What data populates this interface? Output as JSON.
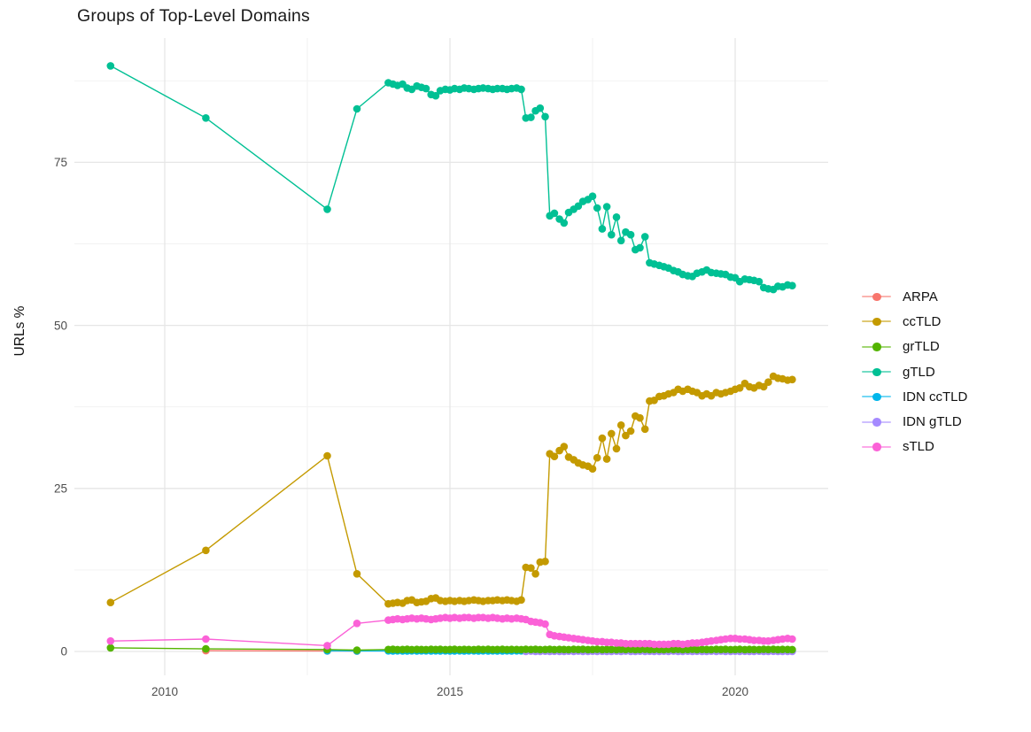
{
  "chart_data": {
    "type": "line",
    "title": "Groups of Top-Level Domains",
    "xlabel": "",
    "ylabel": "URLs %",
    "x_ticks": [
      2010,
      2015,
      2020
    ],
    "y_ticks": [
      0,
      25,
      50,
      75
    ],
    "x_minor_gridlines": [
      2012.5,
      2017.5
    ],
    "y_minor_gridlines": [
      12.5,
      37.5,
      62.5,
      87.5
    ],
    "xlim": [
      2008.45,
      2021.65
    ],
    "ylim": [
      -4,
      94.3
    ],
    "grid": "on",
    "legend_position": "right",
    "legend_order": [
      "ARPA",
      "ccTLD",
      "grTLD",
      "gTLD",
      "IDN ccTLD",
      "IDN gTLD",
      "sTLD"
    ],
    "draw_order": [
      "ARPA",
      "IDN ccTLD",
      "IDN gTLD",
      "grTLD",
      "ccTLD",
      "gTLD",
      "sTLD"
    ],
    "x": [
      2009.05,
      2010.72,
      2012.85,
      2013.37,
      2013.92,
      2014,
      2014.08,
      2014.17,
      2014.25,
      2014.33,
      2014.42,
      2014.5,
      2014.58,
      2014.67,
      2014.75,
      2014.83,
      2014.92,
      2015,
      2015.08,
      2015.17,
      2015.25,
      2015.33,
      2015.42,
      2015.5,
      2015.58,
      2015.67,
      2015.75,
      2015.83,
      2015.92,
      2016,
      2016.08,
      2016.17,
      2016.25,
      2016.33,
      2016.42,
      2016.5,
      2016.58,
      2016.67,
      2016.75,
      2016.83,
      2016.92,
      2017,
      2017.08,
      2017.17,
      2017.25,
      2017.33,
      2017.42,
      2017.5,
      2017.58,
      2017.67,
      2017.75,
      2017.83,
      2017.92,
      2018,
      2018.08,
      2018.17,
      2018.25,
      2018.33,
      2018.42,
      2018.5,
      2018.58,
      2018.67,
      2018.75,
      2018.83,
      2018.92,
      2019,
      2019.08,
      2019.17,
      2019.25,
      2019.33,
      2019.42,
      2019.5,
      2019.58,
      2019.67,
      2019.75,
      2019.83,
      2019.92,
      2020,
      2020.08,
      2020.17,
      2020.25,
      2020.33,
      2020.42,
      2020.5,
      2020.58,
      2020.67,
      2020.75,
      2020.83,
      2020.92,
      2021
    ],
    "series": [
      {
        "name": "ARPA",
        "color": "#F8766D",
        "start_index": 1,
        "y": [
          0.12,
          0.08,
          0.05
        ]
      },
      {
        "name": "ccTLD",
        "color": "#C49A00",
        "start_index": 0,
        "y": [
          7.5,
          15.5,
          30.0,
          11.9,
          7.3,
          7.4,
          7.5,
          7.4,
          7.8,
          7.9,
          7.5,
          7.6,
          7.7,
          8.1,
          8.2,
          7.8,
          7.7,
          7.8,
          7.7,
          7.8,
          7.7,
          7.8,
          7.9,
          7.8,
          7.7,
          7.8,
          7.8,
          7.9,
          7.8,
          7.9,
          7.8,
          7.7,
          7.9,
          12.9,
          12.8,
          11.9,
          13.7,
          13.8,
          30.3,
          29.9,
          30.8,
          31.4,
          29.8,
          29.4,
          28.9,
          28.6,
          28.4,
          28.0,
          29.7,
          32.7,
          29.5,
          33.4,
          31.1,
          34.7,
          33.1,
          33.8,
          36.1,
          35.8,
          34.1,
          38.4,
          38.5,
          39.1,
          39.2,
          39.5,
          39.7,
          40.2,
          39.9,
          40.2,
          39.9,
          39.7,
          39.2,
          39.5,
          39.2,
          39.7,
          39.5,
          39.7,
          39.9,
          40.2,
          40.4,
          41.1,
          40.6,
          40.4,
          40.8,
          40.6,
          41.3,
          42.2,
          41.9,
          41.8,
          41.6,
          41.7
        ]
      },
      {
        "name": "grTLD",
        "color": "#53B400",
        "start_index": 0,
        "y": [
          0.55,
          0.4,
          0.3,
          0.2,
          0.3,
          0.32,
          0.28,
          0.3,
          0.33,
          0.29,
          0.31,
          0.3,
          0.28,
          0.32,
          0.3,
          0.32,
          0.28,
          0.3,
          0.33,
          0.29,
          0.31,
          0.3,
          0.28,
          0.32,
          0.3,
          0.32,
          0.28,
          0.3,
          0.33,
          0.29,
          0.31,
          0.3,
          0.28,
          0.32,
          0.3,
          0.32,
          0.28,
          0.3,
          0.33,
          0.29,
          0.31,
          0.3,
          0.28,
          0.32,
          0.3,
          0.32,
          0.28,
          0.3,
          0.33,
          0.29,
          0.31,
          0.3,
          0.28,
          0.32,
          0.3,
          0.32,
          0.28,
          0.3,
          0.33,
          0.29,
          0.31,
          0.3,
          0.28,
          0.32,
          0.3,
          0.32,
          0.28,
          0.3,
          0.33,
          0.29,
          0.31,
          0.3,
          0.28,
          0.32,
          0.3,
          0.32,
          0.28,
          0.3,
          0.33,
          0.29,
          0.31,
          0.3,
          0.28,
          0.32,
          0.3,
          0.32,
          0.29,
          0.31,
          0.3,
          0.28
        ]
      },
      {
        "name": "gTLD",
        "color": "#00C094",
        "start_index": 0,
        "y": [
          89.8,
          81.8,
          67.8,
          83.2,
          87.2,
          87.0,
          86.8,
          87.0,
          86.4,
          86.2,
          86.7,
          86.5,
          86.3,
          85.4,
          85.2,
          86.0,
          86.2,
          86.1,
          86.3,
          86.2,
          86.4,
          86.3,
          86.2,
          86.3,
          86.4,
          86.3,
          86.2,
          86.3,
          86.3,
          86.2,
          86.3,
          86.4,
          86.2,
          81.8,
          81.9,
          82.9,
          83.3,
          82.0,
          66.8,
          67.2,
          66.3,
          65.7,
          67.3,
          67.8,
          68.3,
          69.0,
          69.3,
          69.8,
          68.0,
          64.8,
          68.2,
          63.9,
          66.6,
          63.0,
          64.3,
          63.9,
          61.6,
          61.9,
          63.6,
          59.6,
          59.4,
          59.2,
          59.0,
          58.8,
          58.4,
          58.2,
          57.8,
          57.6,
          57.5,
          58.0,
          58.2,
          58.5,
          58.1,
          58.0,
          57.9,
          57.8,
          57.4,
          57.3,
          56.7,
          57.1,
          57.0,
          56.9,
          56.7,
          55.8,
          55.6,
          55.5,
          56.0,
          55.9,
          56.2,
          56.1
        ]
      },
      {
        "name": "IDN ccTLD",
        "color": "#00B6EB",
        "start_index": 2,
        "y": [
          0.1,
          0.08,
          0.09,
          0.07,
          0.1,
          0.08,
          0.07,
          0.09,
          0.08,
          0.1,
          0.1,
          0.08,
          0.09,
          0.07,
          0.1,
          0.08,
          0.07,
          0.09,
          0.08,
          0.1,
          0.1,
          0.08,
          0.09,
          0.07,
          0.1,
          0.08,
          0.07,
          0.09,
          0.08,
          0.1,
          0.1,
          0.08,
          0.09,
          0.07,
          0.1,
          0.08,
          0.07,
          0.09,
          0.08,
          0.1,
          0.1,
          0.08,
          0.09,
          0.07,
          0.1,
          0.08,
          0.07,
          0.09,
          0.08,
          0.1,
          0.1,
          0.08,
          0.09,
          0.07,
          0.1,
          0.08,
          0.07,
          0.09,
          0.08,
          0.1,
          0.1,
          0.08,
          0.09,
          0.07,
          0.1,
          0.08,
          0.07,
          0.09,
          0.08,
          0.1,
          0.1,
          0.08,
          0.09,
          0.07,
          0.1,
          0.08,
          0.07,
          0.09,
          0.08,
          0.1,
          0.08,
          0.09,
          0.1,
          0.08,
          0.07,
          0.09,
          0.08,
          0.08
        ]
      },
      {
        "name": "IDN gTLD",
        "color": "#A58AFF",
        "start_index": 33,
        "y": [
          0,
          0.05,
          0.02,
          0,
          0.04,
          0.01,
          0.03,
          0,
          0.02,
          0.04,
          0,
          0.05,
          0.02,
          0,
          0.04,
          0.01,
          0.03,
          0,
          0.02,
          0.04,
          0,
          0.05,
          0.02,
          0,
          0.04,
          0.01,
          0.03,
          0,
          0.02,
          0.04,
          0,
          0.05,
          0.02,
          0,
          0.04,
          0.01,
          0.03,
          0,
          0.02,
          0.04,
          0,
          0.05,
          0.02,
          0,
          0.04,
          0.01,
          0.03,
          0,
          0.02,
          0.04,
          0.02,
          0,
          0.03,
          0.01,
          0.02,
          0,
          0.02
        ]
      },
      {
        "name": "sTLD",
        "color": "#FB61D7",
        "start_index": 0,
        "y": [
          1.6,
          1.9,
          0.9,
          4.3,
          4.8,
          4.9,
          5.0,
          4.9,
          5.0,
          5.1,
          5.0,
          5.1,
          5.0,
          4.9,
          5.0,
          5.1,
          5.2,
          5.1,
          5.2,
          5.1,
          5.2,
          5.2,
          5.1,
          5.2,
          5.2,
          5.1,
          5.2,
          5.1,
          5.0,
          5.1,
          5.0,
          5.1,
          5.0,
          4.9,
          4.6,
          4.5,
          4.4,
          4.2,
          2.6,
          2.4,
          2.3,
          2.2,
          2.1,
          2.0,
          1.9,
          1.8,
          1.7,
          1.6,
          1.5,
          1.5,
          1.4,
          1.4,
          1.3,
          1.3,
          1.2,
          1.2,
          1.2,
          1.2,
          1.2,
          1.2,
          1.1,
          1.1,
          1.1,
          1.1,
          1.2,
          1.2,
          1.1,
          1.2,
          1.3,
          1.3,
          1.4,
          1.5,
          1.6,
          1.7,
          1.8,
          1.9,
          2.0,
          2.0,
          1.9,
          1.9,
          1.8,
          1.7,
          1.7,
          1.6,
          1.6,
          1.7,
          1.8,
          1.9,
          2.0,
          1.9
        ]
      }
    ]
  }
}
